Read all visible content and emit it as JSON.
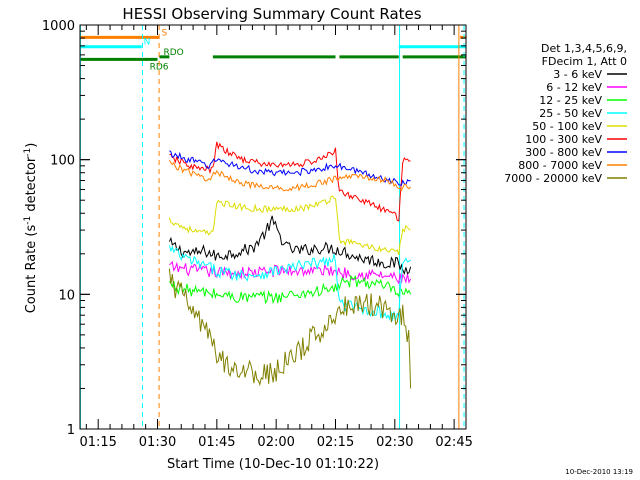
{
  "chart_data": {
    "type": "line",
    "title": "HESSI Observing Summary Count Rates",
    "xlabel": "Start Time (10-Dec-10 01:10:22)",
    "ylabel_main": "Count Rate (s",
    "ylabel_sup1": "-1",
    "ylabel_mid": " detector",
    "ylabel_sup2": "-1",
    "ylabel_end": ")",
    "yscale": "log",
    "ylim": [
      1,
      1000
    ],
    "xlim_minutes": [
      70.4,
      168.0
    ],
    "x_ticks": [
      {
        "label": "01:15",
        "min": 75
      },
      {
        "label": "01:30",
        "min": 90
      },
      {
        "label": "01:45",
        "min": 105
      },
      {
        "label": "02:00",
        "min": 120
      },
      {
        "label": "02:15",
        "min": 135
      },
      {
        "label": "02:30",
        "min": 150
      },
      {
        "label": "02:45",
        "min": 165
      }
    ],
    "y_ticks": [
      {
        "label": "1",
        "value": 1
      },
      {
        "label": "10",
        "value": 10
      },
      {
        "label": "100",
        "value": 100
      },
      {
        "label": "1000",
        "value": 1000
      }
    ],
    "legend_header": [
      "Det 1,3,4,5,6,9,",
      "FDecim 1, Att 0"
    ],
    "series": [
      {
        "name": "3 - 6 keV",
        "color": "#000000",
        "points": [
          [
            93,
            24
          ],
          [
            96,
            21
          ],
          [
            99,
            20
          ],
          [
            102,
            21
          ],
          [
            105,
            19
          ],
          [
            108,
            20
          ],
          [
            111,
            21
          ],
          [
            114,
            22
          ],
          [
            117,
            28
          ],
          [
            119,
            35
          ],
          [
            121,
            27
          ],
          [
            123,
            22
          ],
          [
            126,
            21
          ],
          [
            130,
            22
          ],
          [
            134,
            22
          ],
          [
            137,
            21
          ],
          [
            140,
            19
          ],
          [
            144,
            18
          ],
          [
            148,
            17
          ],
          [
            151,
            17
          ],
          [
            152,
            15
          ],
          [
            154,
            16
          ]
        ]
      },
      {
        "name": "6 - 12 keV",
        "color": "#ff00ff",
        "points": [
          [
            93,
            16
          ],
          [
            96,
            15.5
          ],
          [
            100,
            15
          ],
          [
            105,
            14.5
          ],
          [
            110,
            14.5
          ],
          [
            115,
            14.5
          ],
          [
            120,
            15
          ],
          [
            125,
            15
          ],
          [
            130,
            15
          ],
          [
            135,
            15
          ],
          [
            137,
            14.5
          ],
          [
            141,
            14
          ],
          [
            145,
            14
          ],
          [
            149,
            13.5
          ],
          [
            151,
            13
          ],
          [
            152,
            13
          ],
          [
            154,
            13
          ]
        ]
      },
      {
        "name": "12 - 25 keV",
        "color": "#00ff00",
        "points": [
          [
            93,
            12
          ],
          [
            96,
            11
          ],
          [
            100,
            10.5
          ],
          [
            105,
            10
          ],
          [
            110,
            9.5
          ],
          [
            115,
            9.5
          ],
          [
            120,
            9.5
          ],
          [
            125,
            10
          ],
          [
            130,
            10.5
          ],
          [
            135,
            11
          ],
          [
            136,
            12
          ],
          [
            140,
            12.5
          ],
          [
            145,
            12
          ],
          [
            149,
            11
          ],
          [
            151,
            10
          ],
          [
            152,
            10
          ],
          [
            154,
            10
          ]
        ]
      },
      {
        "name": "25 - 50 keV",
        "color": "#00ffff",
        "points": [
          [
            93,
            22
          ],
          [
            96,
            19
          ],
          [
            100,
            17
          ],
          [
            105,
            15
          ],
          [
            110,
            14
          ],
          [
            115,
            14
          ],
          [
            120,
            15
          ],
          [
            125,
            16
          ],
          [
            130,
            17
          ],
          [
            135,
            18
          ],
          [
            136,
            8.5
          ],
          [
            140,
            8
          ],
          [
            145,
            7.5
          ],
          [
            149,
            7
          ],
          [
            151,
            7
          ],
          [
            152,
            18
          ],
          [
            154,
            18
          ]
        ]
      },
      {
        "name": "50 - 100 keV",
        "color": "#dddd00",
        "points": [
          [
            93,
            36
          ],
          [
            96,
            32
          ],
          [
            100,
            29
          ],
          [
            104,
            28
          ],
          [
            105,
            50
          ],
          [
            108,
            46
          ],
          [
            112,
            44
          ],
          [
            117,
            43
          ],
          [
            122,
            43
          ],
          [
            127,
            44
          ],
          [
            132,
            48
          ],
          [
            135,
            54
          ],
          [
            136,
            25
          ],
          [
            140,
            24
          ],
          [
            145,
            22
          ],
          [
            149,
            21
          ],
          [
            151,
            20
          ],
          [
            152,
            31
          ],
          [
            154,
            30
          ]
        ]
      },
      {
        "name": "100 - 300 keV",
        "color": "#ff0000",
        "points": [
          [
            93,
            105
          ],
          [
            96,
            96
          ],
          [
            100,
            86
          ],
          [
            104,
            84
          ],
          [
            105,
            130
          ],
          [
            108,
            112
          ],
          [
            112,
            100
          ],
          [
            117,
            92
          ],
          [
            122,
            91
          ],
          [
            127,
            94
          ],
          [
            132,
            102
          ],
          [
            135,
            118
          ],
          [
            136,
            57
          ],
          [
            140,
            53
          ],
          [
            145,
            45
          ],
          [
            149,
            40
          ],
          [
            151,
            37
          ],
          [
            152,
            100
          ],
          [
            154,
            98
          ]
        ]
      },
      {
        "name": "300 - 800 keV",
        "color": "#0000ff",
        "points": [
          [
            93,
            112
          ],
          [
            96,
            104
          ],
          [
            100,
            96
          ],
          [
            103,
            90
          ],
          [
            105,
            100
          ],
          [
            110,
            90
          ],
          [
            115,
            82
          ],
          [
            120,
            79
          ],
          [
            125,
            80
          ],
          [
            130,
            85
          ],
          [
            135,
            90
          ],
          [
            140,
            83
          ],
          [
            145,
            75
          ],
          [
            149,
            70
          ],
          [
            151,
            68
          ],
          [
            152,
            68
          ],
          [
            154,
            70
          ]
        ]
      },
      {
        "name": "800 - 7000 keV",
        "color": "#ff8000",
        "points": [
          [
            93,
            95
          ],
          [
            96,
            86
          ],
          [
            100,
            76
          ],
          [
            103,
            72
          ],
          [
            105,
            80
          ],
          [
            110,
            70
          ],
          [
            115,
            63
          ],
          [
            120,
            61
          ],
          [
            125,
            62
          ],
          [
            130,
            66
          ],
          [
            135,
            72
          ],
          [
            140,
            76
          ],
          [
            145,
            73
          ],
          [
            149,
            68
          ],
          [
            151,
            63
          ],
          [
            152,
            62
          ],
          [
            154,
            63
          ]
        ]
      },
      {
        "name": "7000 - 20000 keV",
        "color": "#808000",
        "points": [
          [
            93,
            13
          ],
          [
            96,
            10
          ],
          [
            99,
            7.5
          ],
          [
            102,
            5.5
          ],
          [
            105,
            3.5
          ],
          [
            108,
            3
          ],
          [
            111,
            2.8
          ],
          [
            114,
            2.6
          ],
          [
            117,
            2.5
          ],
          [
            120,
            2.7
          ],
          [
            123,
            3.2
          ],
          [
            126,
            3.8
          ],
          [
            130,
            5
          ],
          [
            133,
            6
          ],
          [
            136,
            8
          ],
          [
            140,
            8.5
          ],
          [
            144,
            8.5
          ],
          [
            148,
            8
          ],
          [
            151,
            7
          ],
          [
            152,
            7
          ],
          [
            153.5,
            5
          ],
          [
            154,
            2
          ]
        ]
      }
    ],
    "flag_lines": [
      {
        "label": "S",
        "color": "#ff8000",
        "value": 810,
        "segments": [
          [
            70.4,
            90.5
          ],
          [
            166.5,
            168
          ]
        ],
        "label_at": 91
      },
      {
        "label": "N",
        "color": "#00ffff",
        "value": 690,
        "segments": [
          [
            70.4,
            86
          ],
          [
            151,
            168
          ]
        ],
        "label_at": 86.5
      },
      {
        "label": "RDO",
        "color": "#008000",
        "value": 580,
        "segments": [
          [
            90.5,
            93
          ],
          [
            104,
            135
          ],
          [
            136,
            151
          ],
          [
            152,
            168
          ]
        ],
        "label_at": 91.5
      },
      {
        "label": "RD6",
        "color": "#008000",
        "value": 555,
        "segments": [
          [
            70.4,
            90
          ]
        ],
        "label_at": 88
      }
    ],
    "vertical_lines": [
      {
        "min": 70.5,
        "color": "#00ffff",
        "style": "solid"
      },
      {
        "min": 86.2,
        "color": "#00ffff",
        "style": "dashed"
      },
      {
        "min": 90.4,
        "color": "#ff8000",
        "style": "dashed"
      },
      {
        "min": 151.2,
        "color": "#00ffff",
        "style": "solid"
      },
      {
        "min": 166.2,
        "color": "#ff8000",
        "style": "solid"
      },
      {
        "min": 167.5,
        "color": "#00ffff",
        "style": "dashed"
      }
    ],
    "timestamp": "10-Dec-2010 13:19"
  }
}
